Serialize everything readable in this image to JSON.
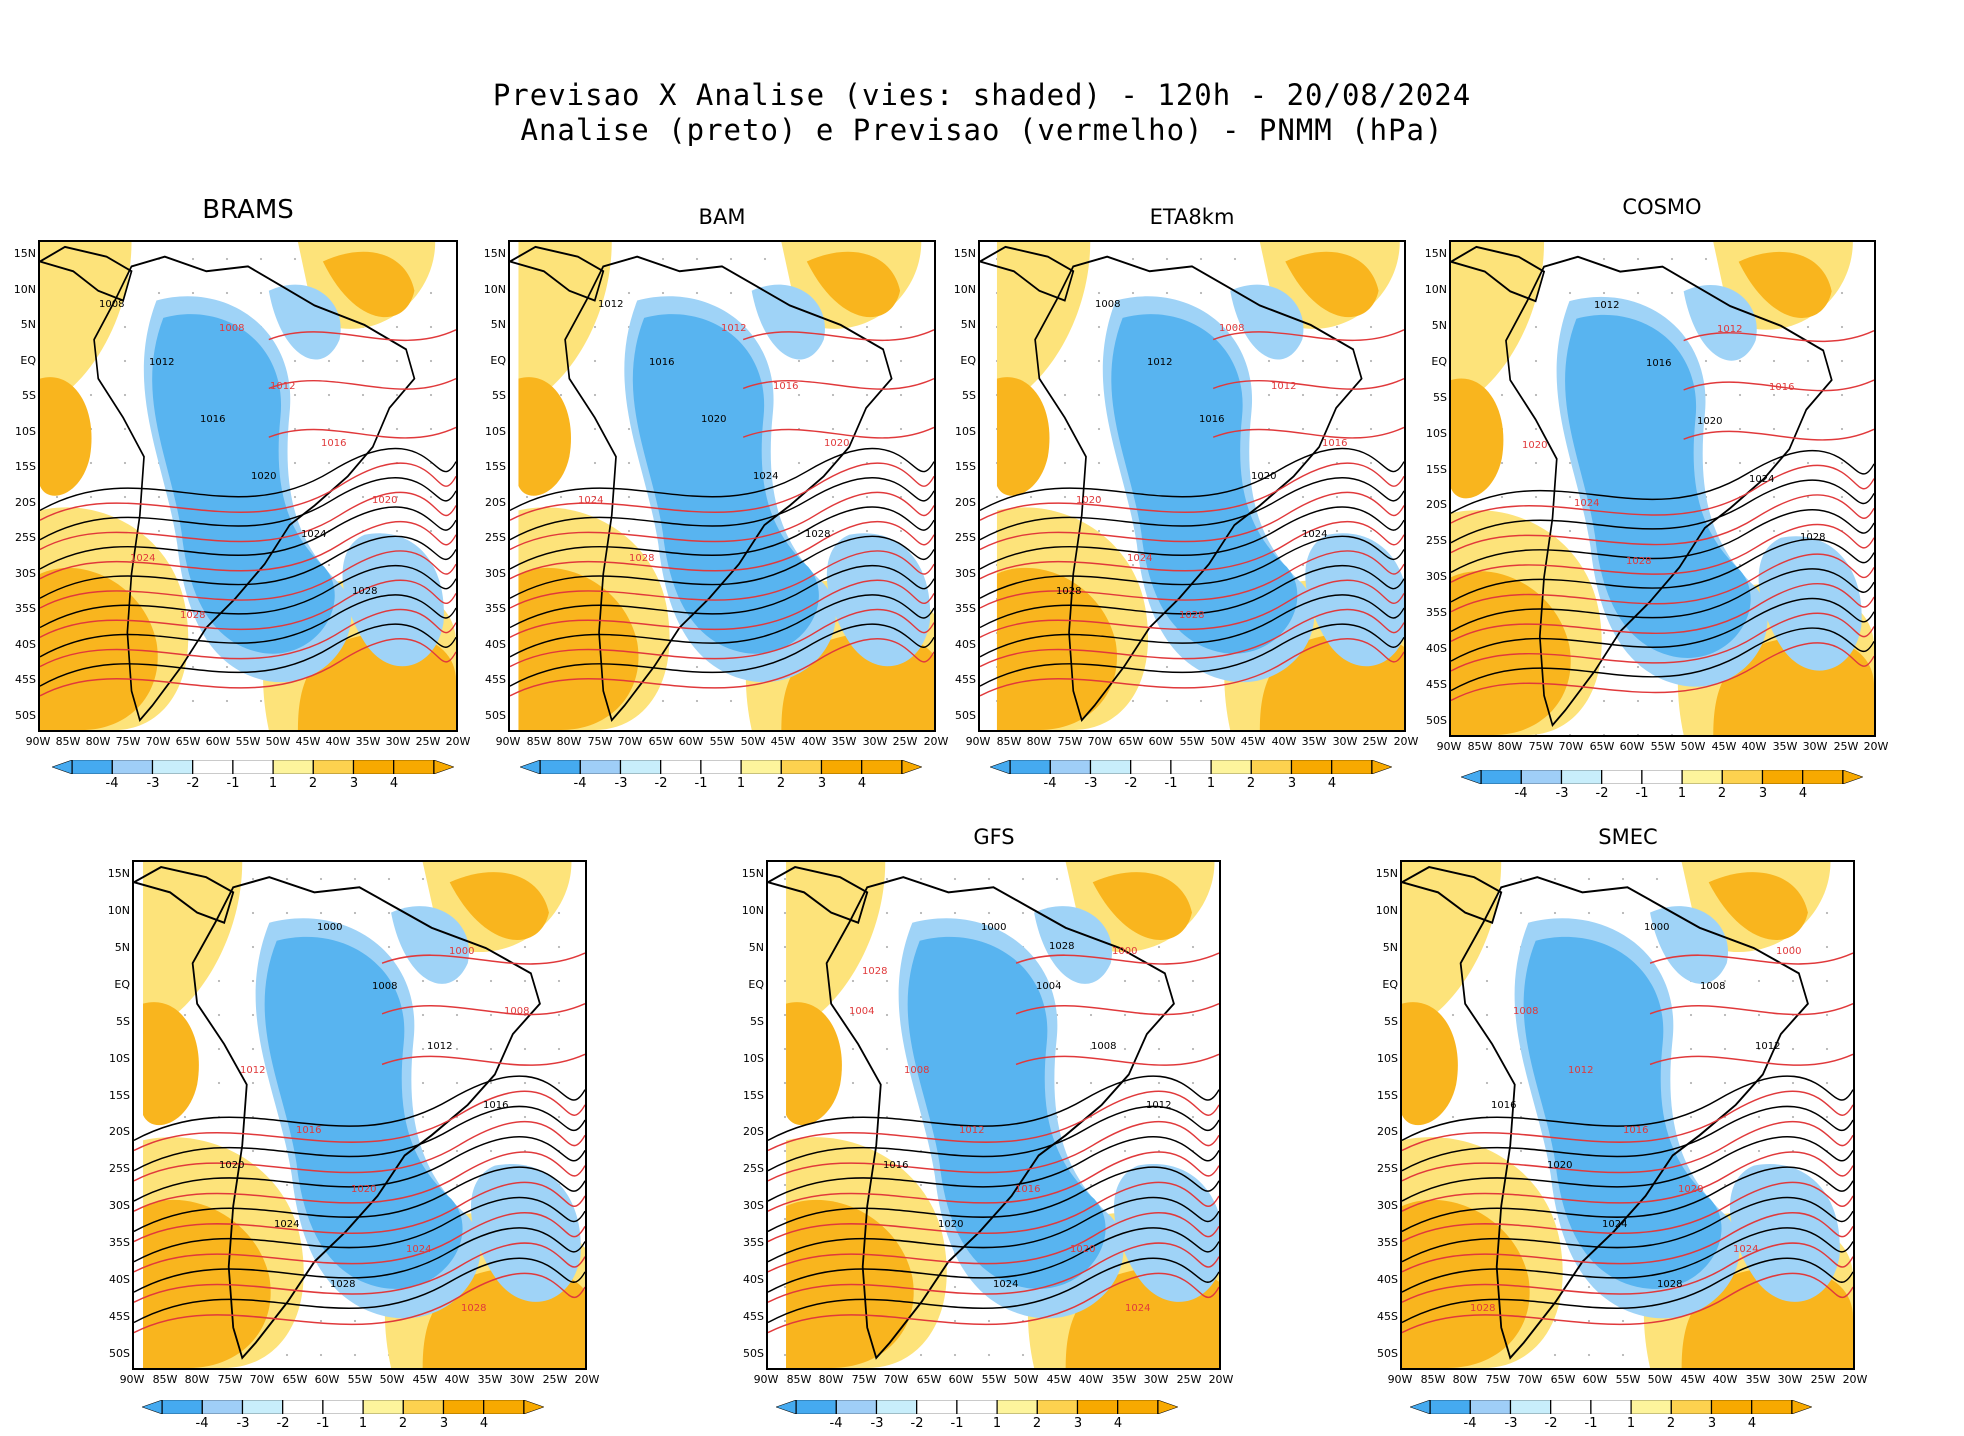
{
  "title": {
    "line1": "Previsao X Analise (vies: shaded) - 120h - 20/08/2024",
    "line2": "Analise (preto) e Previsao (vermelho) - PNMM (hPa)"
  },
  "panels": [
    {
      "name": "BRAMS"
    },
    {
      "name": "BAM"
    },
    {
      "name": "ETA8km"
    },
    {
      "name": "COSMO"
    },
    {
      "name": ""
    },
    {
      "name": "GFS"
    },
    {
      "name": "SMEC"
    }
  ],
  "lat_ticks": [
    "15N",
    "10N",
    "5N",
    "EQ",
    "5S",
    "10S",
    "15S",
    "20S",
    "25S",
    "30S",
    "35S",
    "40S",
    "45S",
    "50S"
  ],
  "lon_ticks": [
    "90W",
    "85W",
    "80W",
    "75W",
    "70W",
    "65W",
    "60W",
    "55W",
    "50W",
    "45W",
    "40W",
    "35W",
    "30W",
    "25W",
    "20W"
  ],
  "colorbar": {
    "labels": [
      "-4",
      "-3",
      "-2",
      "-1",
      "1",
      "2",
      "3",
      "4"
    ],
    "colors": [
      "#45aaf0",
      "#9fcef7",
      "#c8eefb",
      "#ffffff",
      "#ffffff",
      "#fdf49c",
      "#fdd24f",
      "#f7a900",
      "#f7a900"
    ]
  },
  "colors": {
    "negative": "#58b4f0",
    "positive": "#f9b51e",
    "analysis_contour": "#000000",
    "forecast_contour": "#e0393b"
  },
  "contour_labels": {
    "BRAMS": [
      "1008",
      "1012",
      "1016",
      "1020",
      "1024",
      "1028"
    ],
    "BAM": [
      "1012",
      "1016",
      "1020",
      "1024",
      "1028"
    ],
    "ETA8km": [
      "1008",
      "1012",
      "1016",
      "1020",
      "1024",
      "1028"
    ],
    "COSMO": [
      "1012",
      "1016",
      "1020",
      "1024",
      "1028"
    ],
    "unnamed": [
      "1000",
      "1008",
      "1012",
      "1016",
      "1020",
      "1024",
      "1028"
    ],
    "GFS": [
      "1000",
      "1004",
      "1008",
      "1012",
      "1016",
      "1020",
      "1024",
      "1028"
    ],
    "SMEC": [
      "1000",
      "1008",
      "1012",
      "1016",
      "1020",
      "1024",
      "1028"
    ]
  }
}
